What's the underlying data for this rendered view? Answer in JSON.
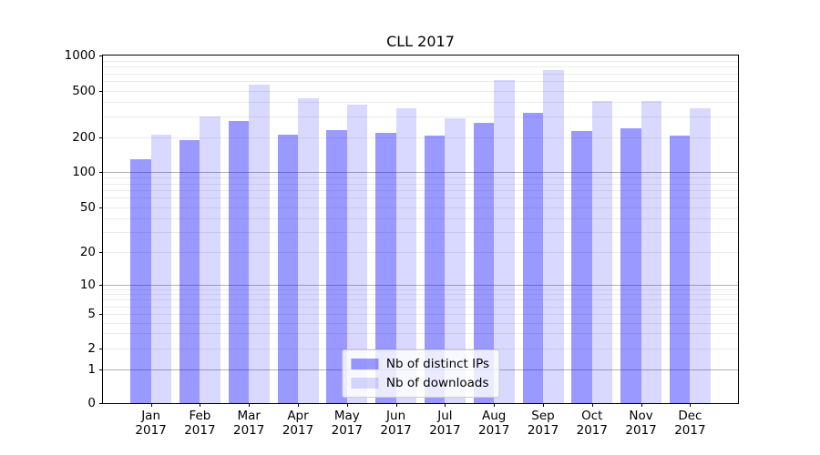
{
  "chart_data": {
    "type": "bar",
    "title": "CLL 2017",
    "categories": [
      "Jan 2017",
      "Feb 2017",
      "Mar 2017",
      "Apr 2017",
      "May 2017",
      "Jun 2017",
      "Jul 2017",
      "Aug 2017",
      "Sep 2017",
      "Oct 2017",
      "Nov 2017",
      "Dec 2017"
    ],
    "series": [
      {
        "name": "Nb of distinct IPs",
        "color": "rgba(0,0,255,0.4)",
        "values": [
          130,
          187,
          273,
          209,
          228,
          218,
          206,
          263,
          324,
          224,
          237,
          206
        ]
      },
      {
        "name": "Nb of downloads",
        "color": "rgba(0,0,255,0.15)",
        "values": [
          210,
          299,
          565,
          433,
          380,
          351,
          292,
          612,
          750,
          408,
          408,
          353
        ]
      }
    ],
    "y_axis": {
      "scale": "symlog",
      "ylim": [
        0,
        1000
      ],
      "tick_values": [
        0,
        1,
        2,
        5,
        10,
        20,
        50,
        100,
        200,
        500,
        1000
      ],
      "tick_labels": [
        "0",
        "1",
        "2",
        "5",
        "10",
        "20",
        "50",
        "100",
        "200",
        "500",
        "1000"
      ]
    },
    "x_axis": {
      "tick_labels_line2": "2017"
    },
    "legend_position": "lower center",
    "grid": "on",
    "colors": {
      "bar_distinct_ips": "rgba(0,0,255,0.4)",
      "bar_downloads": "rgba(0,0,255,0.15)",
      "grid_major": "rgba(0,0,0,0.30)",
      "grid_minor": "rgba(0,0,0,0.08)",
      "axis": "#000000",
      "background": "#ffffff",
      "text": "#000000"
    }
  }
}
